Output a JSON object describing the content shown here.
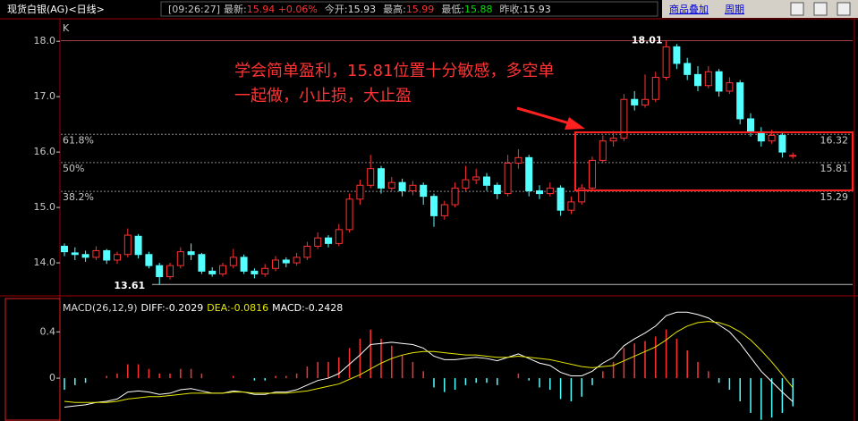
{
  "header": {
    "title": "现货白银(AG)<日线>",
    "time": "[09:26:27]",
    "fields": [
      {
        "label": "最新:",
        "value": "15.94 +0.06%"
      },
      {
        "label": "今开:",
        "value": "15.93"
      },
      {
        "label": "最高:",
        "value": "15.99"
      },
      {
        "label": "最低:",
        "value": "15.88"
      },
      {
        "label": "昨收:",
        "value": "15.93"
      }
    ],
    "links": [
      "商品叠加",
      "周期"
    ]
  },
  "chart_data": [
    {
      "type": "candlestick",
      "corner_label": "K",
      "up_color": "#ff3232",
      "down_color": "#54ffff",
      "ylim": [
        13.42,
        18.39
      ],
      "yticks": [
        {
          "value": 14,
          "label": "14.0"
        },
        {
          "value": 15,
          "label": "15.0"
        },
        {
          "value": 16,
          "label": "16.0"
        },
        {
          "value": 17,
          "label": "17.0"
        },
        {
          "value": 18,
          "label": "18.0"
        }
      ],
      "fib_levels": [
        {
          "label": "61.8%",
          "value": 16.32
        },
        {
          "label": "50%",
          "value": 15.81
        },
        {
          "label": "38.2%",
          "value": 15.29
        }
      ],
      "high_marker": 18.01,
      "low_marker": 13.61,
      "annotation": [
        "学会简单盈利，15.81位置十分敏感，多空单",
        "一起做，小止损，大止盈"
      ],
      "candles": [
        [
          14.3,
          14.35,
          14.12,
          14.2
        ],
        [
          14.18,
          14.28,
          14.05,
          14.15
        ],
        [
          14.15,
          14.22,
          14.02,
          14.1
        ],
        [
          14.1,
          14.3,
          14.05,
          14.22
        ],
        [
          14.22,
          14.25,
          13.98,
          14.05
        ],
        [
          14.05,
          14.2,
          13.98,
          14.15
        ],
        [
          14.15,
          14.62,
          14.1,
          14.5
        ],
        [
          14.48,
          14.52,
          14.08,
          14.15
        ],
        [
          14.15,
          14.2,
          13.9,
          13.95
        ],
        [
          13.95,
          14.0,
          13.61,
          13.75
        ],
        [
          13.75,
          14.0,
          13.7,
          13.95
        ],
        [
          13.95,
          14.28,
          13.9,
          14.2
        ],
        [
          14.2,
          14.35,
          14.05,
          14.15
        ],
        [
          14.15,
          14.18,
          13.8,
          13.85
        ],
        [
          13.85,
          13.92,
          13.75,
          13.8
        ],
        [
          13.8,
          14.0,
          13.75,
          13.95
        ],
        [
          13.95,
          14.25,
          13.9,
          14.1
        ],
        [
          14.1,
          14.15,
          13.8,
          13.85
        ],
        [
          13.85,
          13.9,
          13.72,
          13.8
        ],
        [
          13.8,
          13.98,
          13.75,
          13.9
        ],
        [
          13.9,
          14.12,
          13.85,
          14.05
        ],
        [
          14.05,
          14.1,
          13.92,
          14.0
        ],
        [
          14.0,
          14.18,
          13.95,
          14.1
        ],
        [
          14.1,
          14.38,
          14.05,
          14.3
        ],
        [
          14.3,
          14.55,
          14.25,
          14.45
        ],
        [
          14.45,
          14.5,
          14.28,
          14.35
        ],
        [
          14.35,
          14.7,
          14.3,
          14.6
        ],
        [
          14.6,
          15.25,
          14.55,
          15.15
        ],
        [
          15.15,
          15.5,
          15.05,
          15.4
        ],
        [
          15.4,
          15.95,
          15.35,
          15.7
        ],
        [
          15.7,
          15.75,
          15.25,
          15.35
        ],
        [
          15.35,
          15.55,
          15.3,
          15.45
        ],
        [
          15.45,
          15.52,
          15.2,
          15.3
        ],
        [
          15.3,
          15.48,
          15.22,
          15.4
        ],
        [
          15.4,
          15.45,
          15.05,
          15.2
        ],
        [
          15.2,
          15.25,
          14.65,
          14.85
        ],
        [
          14.85,
          15.12,
          14.78,
          15.05
        ],
        [
          15.05,
          15.45,
          15.0,
          15.35
        ],
        [
          15.35,
          15.75,
          15.3,
          15.5
        ],
        [
          15.5,
          15.7,
          15.42,
          15.55
        ],
        [
          15.55,
          15.62,
          15.3,
          15.4
        ],
        [
          15.4,
          15.45,
          15.15,
          15.25
        ],
        [
          15.25,
          15.95,
          15.2,
          15.8
        ],
        [
          15.8,
          16.05,
          15.7,
          15.9
        ],
        [
          15.9,
          15.95,
          15.2,
          15.3
        ],
        [
          15.3,
          15.4,
          15.15,
          15.25
        ],
        [
          15.25,
          15.45,
          15.2,
          15.35
        ],
        [
          15.35,
          15.4,
          14.85,
          14.95
        ],
        [
          14.95,
          15.2,
          14.88,
          15.1
        ],
        [
          15.1,
          15.42,
          15.05,
          15.35
        ],
        [
          15.35,
          15.92,
          15.3,
          15.85
        ],
        [
          15.85,
          16.3,
          15.8,
          16.2
        ],
        [
          16.2,
          16.38,
          16.1,
          16.25
        ],
        [
          16.25,
          17.05,
          16.2,
          16.95
        ],
        [
          16.95,
          17.1,
          16.75,
          16.85
        ],
        [
          16.85,
          17.4,
          16.8,
          16.95
        ],
        [
          16.95,
          17.45,
          16.9,
          17.35
        ],
        [
          17.35,
          18.01,
          17.3,
          17.9
        ],
        [
          17.9,
          17.95,
          17.5,
          17.6
        ],
        [
          17.6,
          17.7,
          17.3,
          17.4
        ],
        [
          17.4,
          17.55,
          17.1,
          17.2
        ],
        [
          17.2,
          17.55,
          17.15,
          17.45
        ],
        [
          17.45,
          17.5,
          17.0,
          17.1
        ],
        [
          17.1,
          17.35,
          17.05,
          17.25
        ],
        [
          17.25,
          17.3,
          16.5,
          16.6
        ],
        [
          16.6,
          16.7,
          16.28,
          16.35
        ],
        [
          16.35,
          16.45,
          16.1,
          16.2
        ],
        [
          16.2,
          16.4,
          16.15,
          16.3
        ],
        [
          16.3,
          16.35,
          15.9,
          16.0
        ],
        [
          15.93,
          15.99,
          15.88,
          15.94
        ]
      ]
    },
    {
      "type": "macd",
      "legend": [
        "MACD(26,12,9)",
        "DIFF:-0.2029",
        "DEA:-0.0816",
        "MACD:-0.2428"
      ],
      "ylim": [
        -0.37,
        0.68
      ],
      "yticks": [
        0,
        0.4
      ],
      "series": [
        {
          "color": "#ffffff",
          "values": [
            -0.25,
            -0.24,
            -0.23,
            -0.21,
            -0.2,
            -0.18,
            -0.12,
            -0.11,
            -0.12,
            -0.14,
            -0.13,
            -0.1,
            -0.09,
            -0.11,
            -0.13,
            -0.13,
            -0.11,
            -0.12,
            -0.14,
            -0.14,
            -0.12,
            -0.12,
            -0.1,
            -0.06,
            -0.02,
            0.0,
            0.04,
            0.12,
            0.2,
            0.29,
            0.3,
            0.31,
            0.3,
            0.29,
            0.26,
            0.19,
            0.16,
            0.16,
            0.17,
            0.18,
            0.17,
            0.15,
            0.18,
            0.21,
            0.17,
            0.13,
            0.11,
            0.05,
            0.02,
            0.02,
            0.06,
            0.13,
            0.18,
            0.28,
            0.34,
            0.39,
            0.45,
            0.54,
            0.57,
            0.57,
            0.55,
            0.52,
            0.46,
            0.4,
            0.3,
            0.18,
            0.06,
            -0.03,
            -0.12,
            -0.2029
          ]
        },
        {
          "color": "#e6e600",
          "values": [
            -0.2,
            -0.21,
            -0.21,
            -0.21,
            -0.21,
            -0.2,
            -0.18,
            -0.17,
            -0.16,
            -0.16,
            -0.15,
            -0.14,
            -0.13,
            -0.13,
            -0.13,
            -0.13,
            -0.12,
            -0.12,
            -0.13,
            -0.13,
            -0.13,
            -0.13,
            -0.12,
            -0.11,
            -0.09,
            -0.07,
            -0.05,
            -0.01,
            0.03,
            0.08,
            0.13,
            0.17,
            0.2,
            0.22,
            0.23,
            0.23,
            0.22,
            0.21,
            0.2,
            0.2,
            0.19,
            0.18,
            0.18,
            0.19,
            0.18,
            0.17,
            0.16,
            0.14,
            0.12,
            0.1,
            0.09,
            0.1,
            0.11,
            0.15,
            0.19,
            0.23,
            0.27,
            0.33,
            0.4,
            0.45,
            0.48,
            0.49,
            0.48,
            0.45,
            0.4,
            0.33,
            0.24,
            0.14,
            0.03,
            -0.0816
          ]
        }
      ],
      "histogram": {
        "up_color": "#ff3232",
        "down_color": "#54ffff",
        "values": [
          -0.1,
          -0.06,
          -0.04,
          0.0,
          0.02,
          0.04,
          0.12,
          0.12,
          0.08,
          0.04,
          0.04,
          0.08,
          0.08,
          0.04,
          0.0,
          0.0,
          0.02,
          0.0,
          -0.02,
          -0.02,
          0.02,
          0.02,
          0.04,
          0.1,
          0.14,
          0.14,
          0.18,
          0.26,
          0.34,
          0.42,
          0.34,
          0.28,
          0.2,
          0.14,
          0.06,
          -0.08,
          -0.12,
          -0.1,
          -0.06,
          -0.04,
          -0.04,
          -0.06,
          0.0,
          0.04,
          -0.02,
          -0.08,
          -0.1,
          -0.18,
          -0.2,
          -0.16,
          -0.06,
          0.06,
          0.14,
          0.26,
          0.3,
          0.32,
          0.36,
          0.42,
          0.34,
          0.24,
          0.14,
          0.06,
          -0.04,
          -0.1,
          -0.2,
          -0.3,
          -0.36,
          -0.34,
          -0.3,
          -0.2428
        ]
      }
    }
  ]
}
